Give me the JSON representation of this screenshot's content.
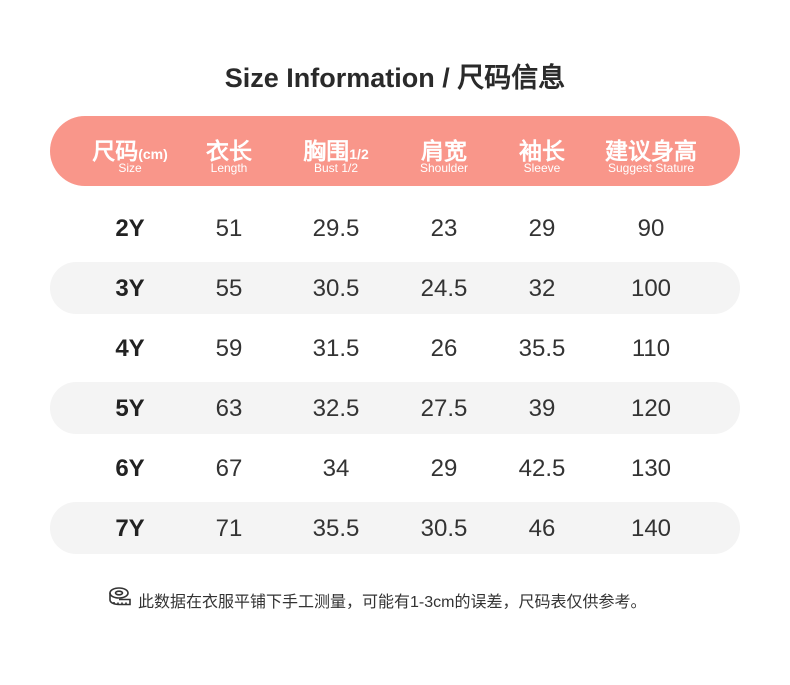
{
  "title": "Size Information / 尺码信息",
  "accent": "#f9968a",
  "stripe": "#f4f4f4",
  "columns": [
    {
      "cn": "尺码",
      "suffix": "(cm)",
      "en": "Size"
    },
    {
      "cn": "衣长",
      "suffix": "",
      "en": "Length"
    },
    {
      "cn": "胸围",
      "suffix": "1/2",
      "en": "Bust 1/2"
    },
    {
      "cn": "肩宽",
      "suffix": "",
      "en": "Shoulder"
    },
    {
      "cn": "袖长",
      "suffix": "",
      "en": "Sleeve"
    },
    {
      "cn": "建议身高",
      "suffix": "",
      "en": "Suggest Stature"
    }
  ],
  "rows": [
    [
      "2Y",
      "51",
      "29.5",
      "23",
      "29",
      "90"
    ],
    [
      "3Y",
      "55",
      "30.5",
      "24.5",
      "32",
      "100"
    ],
    [
      "4Y",
      "59",
      "31.5",
      "26",
      "35.5",
      "110"
    ],
    [
      "5Y",
      "63",
      "32.5",
      "27.5",
      "39",
      "120"
    ],
    [
      "6Y",
      "67",
      "34",
      "29",
      "42.5",
      "130"
    ],
    [
      "7Y",
      "71",
      "35.5",
      "30.5",
      "46",
      "140"
    ]
  ],
  "note": {
    "icon": "tape-measure-icon",
    "text": "此数据在衣服平铺下手工测量，可能有1-3cm的误差，尺码表仅供参考。"
  }
}
